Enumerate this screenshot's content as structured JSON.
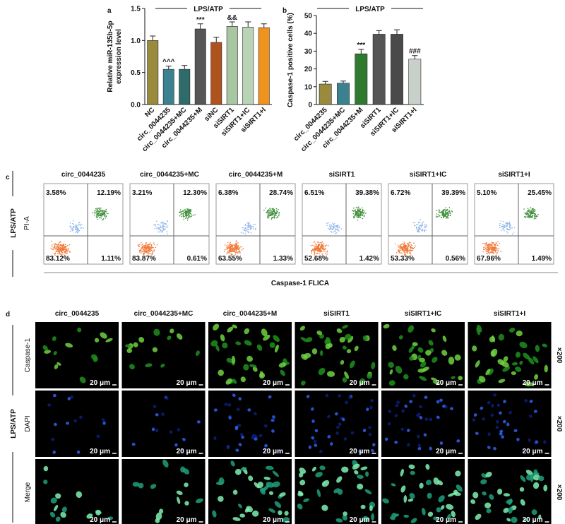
{
  "chart_data": [
    {
      "type": "bar",
      "label": "a",
      "header": "LPS/ATP",
      "y_label": [
        "Relative miR-135b-5p",
        "expression level"
      ],
      "categories": [
        "NC",
        "circ_0044235",
        "circ_0044235+MC",
        "circ_0044235+M",
        "siNC",
        "siSIRT1",
        "siSIRT1+IC",
        "siSIRT1+I"
      ],
      "values": [
        1.0,
        0.55,
        0.55,
        1.18,
        0.97,
        1.22,
        1.21,
        1.2
      ],
      "errors": [
        0.07,
        0.05,
        0.06,
        0.08,
        0.08,
        0.07,
        0.08,
        0.06
      ],
      "colors": [
        "#9a8a3e",
        "#3c8190",
        "#2e6b6a",
        "#565656",
        "#b0521e",
        "#a9c6a2",
        "#b9d4b4",
        "#f0921e"
      ],
      "annotations": [
        null,
        "^^^",
        null,
        "***",
        null,
        "&&",
        null,
        null
      ],
      "ylim": [
        0,
        1.5
      ],
      "yticks": [
        {
          "value": 0,
          "label": "0.0"
        },
        0.5,
        {
          "value": 1,
          "label": "1.0"
        },
        1.5
      ]
    },
    {
      "type": "bar",
      "label": "b",
      "header": "LPS/ATP",
      "y_label": [
        "Caspase-1 positive cells (%)"
      ],
      "categories": [
        "circ_0044235",
        "circ_0044235+MC",
        "circ_0044235+M",
        "siSIRT1",
        "siSIRT1+IC",
        "siSIRT1+I"
      ],
      "values": [
        11.5,
        12,
        28.5,
        39.5,
        39.5,
        25.5
      ],
      "errors": [
        1.5,
        1.2,
        2.5,
        2,
        2.5,
        2
      ],
      "colors": [
        "#9a8a3e",
        "#3c8190",
        "#2f7a2f",
        "#555555",
        "#4a4a4a",
        "#c9d0c9"
      ],
      "annotations": [
        null,
        null,
        "***",
        null,
        null,
        "###"
      ],
      "ylim": [
        0,
        50
      ],
      "yticks": [
        0,
        10,
        20,
        30,
        40,
        50
      ]
    }
  ],
  "flow": {
    "label": "c",
    "side_label": "LPS/ATP",
    "y_label": "PI-A",
    "x_label": "Caspase-1 FLICA",
    "plots": [
      {
        "title": "circ_0044235",
        "upper_left": "3.58%",
        "upper_right": "12.19%",
        "lower_left": "83.12%",
        "lower_right": "1.11%"
      },
      {
        "title": "circ_0044235+MC",
        "upper_left": "3.21%",
        "upper_right": "12.30%",
        "lower_left": "83.87%",
        "lower_right": "0.61%"
      },
      {
        "title": "circ_0044235+M",
        "upper_left": "6.38%",
        "upper_right": "28.74%",
        "lower_left": "63.55%",
        "lower_right": "1.33%"
      },
      {
        "title": "siSIRT1",
        "upper_left": "6.51%",
        "upper_right": "39.38%",
        "lower_left": "52.68%",
        "lower_right": "1.42%"
      },
      {
        "title": "siSIRT1+IC",
        "upper_left": "6.72%",
        "upper_right": "39.39%",
        "lower_left": "53.33%",
        "lower_right": "0.56%"
      },
      {
        "title": "siSIRT1+I",
        "upper_left": "5.10%",
        "upper_right": "25.45%",
        "lower_left": "67.96%",
        "lower_right": "1.49%"
      }
    ]
  },
  "imaging": {
    "label": "d",
    "side_label": "LPS/ATP",
    "scale_bar": "20 μm",
    "magnification": "×200",
    "columns": [
      "circ_0044235",
      "circ_0044235+MC",
      "circ_0044235+M",
      "siSIRT1",
      "siSIRT1+IC",
      "siSIRT1+I"
    ],
    "rows": [
      "Caspase-1",
      "DAPI",
      "Merge"
    ]
  }
}
